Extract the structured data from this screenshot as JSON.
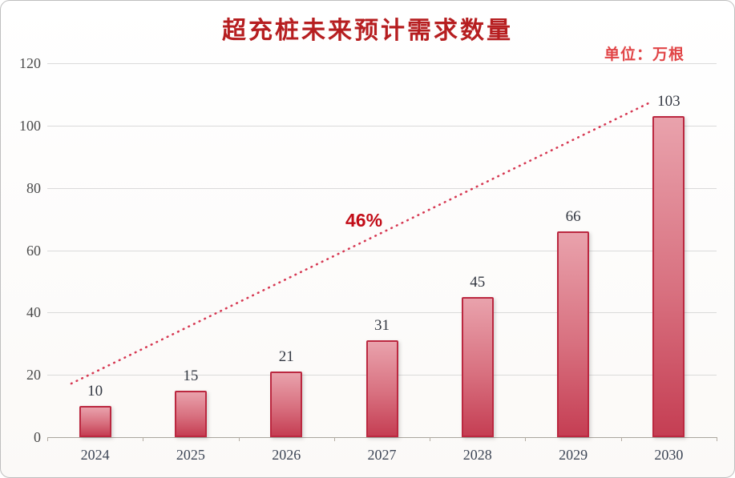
{
  "header": {
    "title": "超充桩未来预计需求数量",
    "unit_label": "单位：万根"
  },
  "chart_data": {
    "type": "bar",
    "title": "超充桩未来预计需求数量",
    "unit": "万根",
    "categories": [
      "2024",
      "2025",
      "2026",
      "2027",
      "2028",
      "2029",
      "2030"
    ],
    "values": [
      10,
      15,
      21,
      31,
      45,
      66,
      103
    ],
    "data_labels": [
      "10",
      "15",
      "21",
      "31",
      "45",
      "66",
      "103"
    ],
    "ylim": [
      0,
      120
    ],
    "yticks": [
      0,
      20,
      40,
      60,
      80,
      100,
      120
    ],
    "grid": true,
    "legend": "none",
    "trendline": {
      "style": "dotted",
      "label": "46%"
    },
    "colors": {
      "title": "#b61e20",
      "unit": "#e14547",
      "bar_top": "#e9a2ac",
      "bar_mid": "#d8707f",
      "bar_bottom": "#c53e53",
      "bar_border": "#bb2840",
      "trend": "#d63852",
      "growth": "#c20d18",
      "grid": "#dadada",
      "axis": "#aaa69e",
      "y_label": "#4a4a4a",
      "x_label": "#3d4656",
      "value_label": "#333842"
    }
  }
}
